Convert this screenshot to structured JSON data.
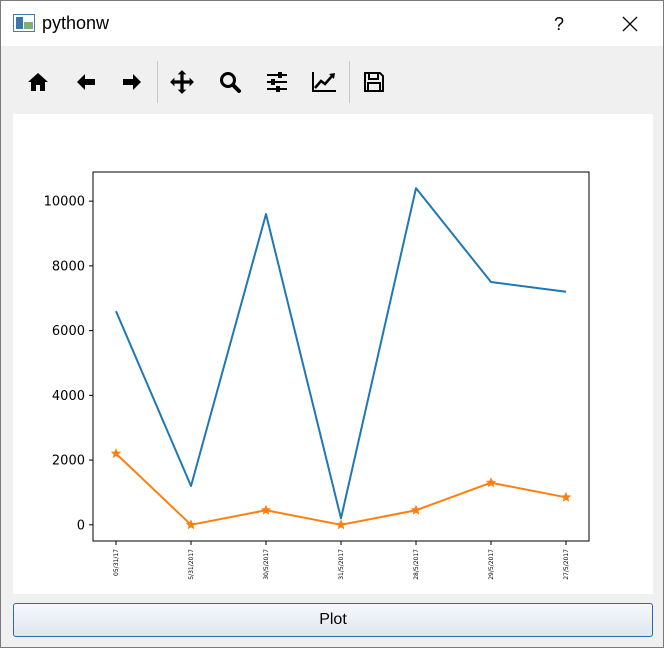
{
  "window": {
    "title": "pythonw",
    "help_label": "?"
  },
  "toolbar": {
    "buttons": [
      "home-icon",
      "back-arrow-icon",
      "forward-arrow-icon",
      "pan-icon",
      "zoom-icon",
      "configure-subplots-icon",
      "edit-axes-icon",
      "save-icon"
    ]
  },
  "plot_button": {
    "label": "Plot"
  },
  "chart_data": {
    "type": "line",
    "categories": [
      "05/31/17",
      "5/31/2017",
      "30/5/2017",
      "31/5/2017",
      "28/5/2017",
      "29/5/2017",
      "27/5/2017"
    ],
    "series": [
      {
        "color": "#1f77b4",
        "marker": "none",
        "values": [
          6600,
          1200,
          9600,
          200,
          10400,
          7500,
          7200
        ]
      },
      {
        "color": "#ff7f0e",
        "marker": "star",
        "values": [
          2200,
          0,
          450,
          0,
          450,
          1300,
          850
        ]
      }
    ],
    "y_ticks": [
      0,
      2000,
      4000,
      6000,
      8000,
      10000
    ],
    "ylim": [
      -500,
      10900
    ],
    "grid": false,
    "xlabel": "",
    "ylabel": "",
    "title": ""
  }
}
